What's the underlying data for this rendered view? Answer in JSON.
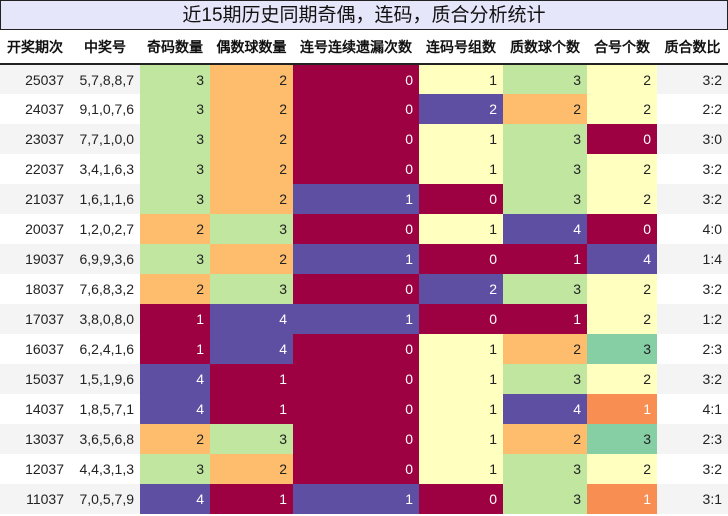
{
  "title": "近15期历史同期奇偶，连码，质合分析统计",
  "headers": [
    "开奖期次",
    "中奖号",
    "奇码数量",
    "偶数球数量",
    "连号连续遗漏次数",
    "连码号组数",
    "质数球个数",
    "合号个数",
    "质合数比"
  ],
  "palette": {
    "G": "#c0e6a0",
    "O": "#fdbd6c",
    "R": "#9e0142",
    "P": "#5e4fa2",
    "Y": "#ffffbf",
    "T": "#86cfa5",
    "F": "#f98e52"
  },
  "dark_colors": [
    "R",
    "P",
    "F"
  ],
  "rows": [
    {
      "period": "25037",
      "numbers": "5,7,8,8,7",
      "cells": [
        [
          "3",
          "G"
        ],
        [
          "2",
          "O"
        ],
        [
          "0",
          "R"
        ],
        [
          "1",
          "Y"
        ],
        [
          "3",
          "G"
        ],
        [
          "2",
          "Y"
        ]
      ],
      "ratio": "3:2"
    },
    {
      "period": "24037",
      "numbers": "9,1,0,7,6",
      "cells": [
        [
          "3",
          "G"
        ],
        [
          "2",
          "O"
        ],
        [
          "0",
          "R"
        ],
        [
          "2",
          "P"
        ],
        [
          "2",
          "O"
        ],
        [
          "2",
          "Y"
        ]
      ],
      "ratio": "2:2"
    },
    {
      "period": "23037",
      "numbers": "7,7,1,0,0",
      "cells": [
        [
          "3",
          "G"
        ],
        [
          "2",
          "O"
        ],
        [
          "0",
          "R"
        ],
        [
          "1",
          "Y"
        ],
        [
          "3",
          "G"
        ],
        [
          "0",
          "R"
        ]
      ],
      "ratio": "3:0"
    },
    {
      "period": "22037",
      "numbers": "3,4,1,6,3",
      "cells": [
        [
          "3",
          "G"
        ],
        [
          "2",
          "O"
        ],
        [
          "0",
          "R"
        ],
        [
          "1",
          "Y"
        ],
        [
          "3",
          "G"
        ],
        [
          "2",
          "Y"
        ]
      ],
      "ratio": "3:2"
    },
    {
      "period": "21037",
      "numbers": "1,6,1,1,6",
      "cells": [
        [
          "3",
          "G"
        ],
        [
          "2",
          "O"
        ],
        [
          "1",
          "P"
        ],
        [
          "0",
          "R"
        ],
        [
          "3",
          "G"
        ],
        [
          "2",
          "Y"
        ]
      ],
      "ratio": "3:2"
    },
    {
      "period": "20037",
      "numbers": "1,2,0,2,7",
      "cells": [
        [
          "2",
          "O"
        ],
        [
          "3",
          "G"
        ],
        [
          "0",
          "R"
        ],
        [
          "1",
          "Y"
        ],
        [
          "4",
          "P"
        ],
        [
          "0",
          "R"
        ]
      ],
      "ratio": "4:0"
    },
    {
      "period": "19037",
      "numbers": "6,9,9,3,6",
      "cells": [
        [
          "3",
          "G"
        ],
        [
          "2",
          "O"
        ],
        [
          "1",
          "P"
        ],
        [
          "0",
          "R"
        ],
        [
          "1",
          "R"
        ],
        [
          "4",
          "P"
        ]
      ],
      "ratio": "1:4"
    },
    {
      "period": "18037",
      "numbers": "7,6,8,3,2",
      "cells": [
        [
          "2",
          "O"
        ],
        [
          "3",
          "G"
        ],
        [
          "0",
          "R"
        ],
        [
          "2",
          "P"
        ],
        [
          "3",
          "G"
        ],
        [
          "2",
          "Y"
        ]
      ],
      "ratio": "3:2"
    },
    {
      "period": "17037",
      "numbers": "3,8,0,8,0",
      "cells": [
        [
          "1",
          "R"
        ],
        [
          "4",
          "P"
        ],
        [
          "1",
          "P"
        ],
        [
          "0",
          "R"
        ],
        [
          "1",
          "R"
        ],
        [
          "2",
          "Y"
        ]
      ],
      "ratio": "1:2"
    },
    {
      "period": "16037",
      "numbers": "6,2,4,1,6",
      "cells": [
        [
          "1",
          "R"
        ],
        [
          "4",
          "P"
        ],
        [
          "0",
          "R"
        ],
        [
          "1",
          "Y"
        ],
        [
          "2",
          "O"
        ],
        [
          "3",
          "T"
        ]
      ],
      "ratio": "2:3"
    },
    {
      "period": "15037",
      "numbers": "1,5,1,9,6",
      "cells": [
        [
          "4",
          "P"
        ],
        [
          "1",
          "R"
        ],
        [
          "0",
          "R"
        ],
        [
          "1",
          "Y"
        ],
        [
          "3",
          "G"
        ],
        [
          "2",
          "Y"
        ]
      ],
      "ratio": "3:2"
    },
    {
      "period": "14037",
      "numbers": "1,8,5,7,1",
      "cells": [
        [
          "4",
          "P"
        ],
        [
          "1",
          "R"
        ],
        [
          "0",
          "R"
        ],
        [
          "1",
          "Y"
        ],
        [
          "4",
          "P"
        ],
        [
          "1",
          "F"
        ]
      ],
      "ratio": "4:1"
    },
    {
      "period": "13037",
      "numbers": "3,6,5,6,8",
      "cells": [
        [
          "2",
          "O"
        ],
        [
          "3",
          "G"
        ],
        [
          "0",
          "R"
        ],
        [
          "1",
          "Y"
        ],
        [
          "2",
          "O"
        ],
        [
          "3",
          "T"
        ]
      ],
      "ratio": "2:3"
    },
    {
      "period": "12037",
      "numbers": "4,4,3,1,3",
      "cells": [
        [
          "3",
          "G"
        ],
        [
          "2",
          "O"
        ],
        [
          "0",
          "R"
        ],
        [
          "1",
          "Y"
        ],
        [
          "3",
          "G"
        ],
        [
          "2",
          "Y"
        ]
      ],
      "ratio": "3:2"
    },
    {
      "period": "11037",
      "numbers": "7,0,5,7,9",
      "cells": [
        [
          "4",
          "P"
        ],
        [
          "1",
          "R"
        ],
        [
          "1",
          "P"
        ],
        [
          "0",
          "R"
        ],
        [
          "3",
          "G"
        ],
        [
          "1",
          "F"
        ]
      ],
      "ratio": "3:1"
    }
  ]
}
